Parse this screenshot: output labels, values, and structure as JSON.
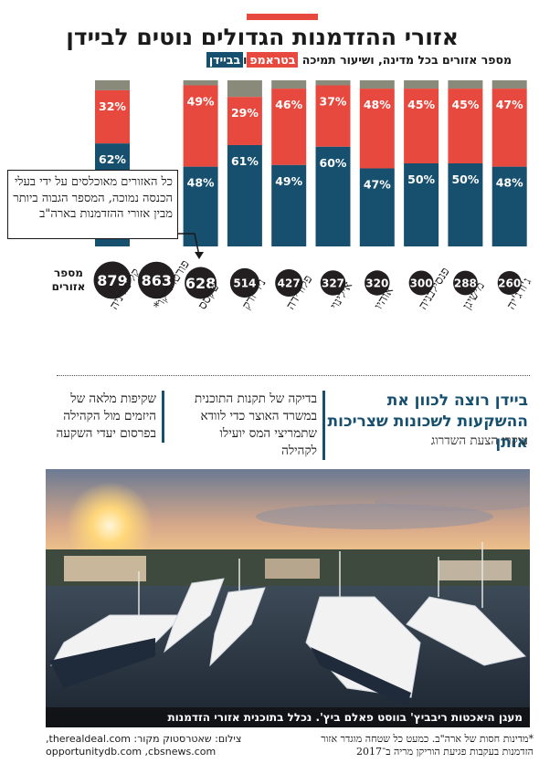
{
  "header": {
    "title": "אזורי ההזדמנות הגדולים נוטים לביידן",
    "subtitle_prefix": "מספר אזורים בכל מדינה, ושיעור תמיכה",
    "trump_label": "בטראמפ",
    "joiner": "ו",
    "biden_label": "בביידן"
  },
  "colors": {
    "trump": "#e8493f",
    "biden": "#17506f",
    "other": "#8a8a7b",
    "circle": "#231f20"
  },
  "chart_data": {
    "type": "bar",
    "stacked": true,
    "categories": [
      "קליפורניה",
      "פורטו ריקו*",
      "טקסס",
      "ניו יורק",
      "פלורידה",
      "אילינוי",
      "אוהיו",
      "פנסילבניה",
      "מישיגן",
      "ג'ורג'יה"
    ],
    "series": [
      {
        "name": "בביידן",
        "values": [
          62,
          null,
          48,
          61,
          49,
          60,
          47,
          50,
          50,
          48
        ]
      },
      {
        "name": "בטראמפ",
        "values": [
          32,
          null,
          49,
          29,
          46,
          37,
          48,
          45,
          45,
          47
        ]
      }
    ],
    "counts": [
      879,
      863,
      628,
      514,
      427,
      327,
      320,
      300,
      288,
      260
    ],
    "counts_label": "מספר אזורים",
    "ylim": [
      0,
      100
    ]
  },
  "callout": {
    "text": "כל האזורים מאוכלסים על ידי בעלי הכנסה נמוכה, המספר הגבוה ביותר מבין אזורי ההזדמנות בארה\"ב"
  },
  "section": {
    "headline": "ביידן רוצה לכוון את ההשקעות לשכונות שצריכות אותן",
    "sub": "עיקרי הצעת השדרוג",
    "point1": "בדיקה של תקנות התוכנית במשרד האוצר כדי לוודא שתמריצי המס יועילו לקהילה",
    "point2": "שקיפות מלאה של היזמים מול הקהילה בפרסום יעדי השקעה"
  },
  "photo": {
    "caption": "מעגן היאכטות ריבביץ' בווסט פאלם ביץ'. נכלל בתוכנית אזורי הזדמנות"
  },
  "footer": {
    "footnote": "*מדינות חסות של ארה\"ב. כמעט כל שטחה מוגדר אזור הזדמנות בעקבות פגיעת הוריקן מריה ב־2017",
    "credit_line1": "צילום: שאטרסטוק  מקור: therealdeal.com,",
    "credit_line2": "opportunitydb.com ,cbsnews.com"
  }
}
